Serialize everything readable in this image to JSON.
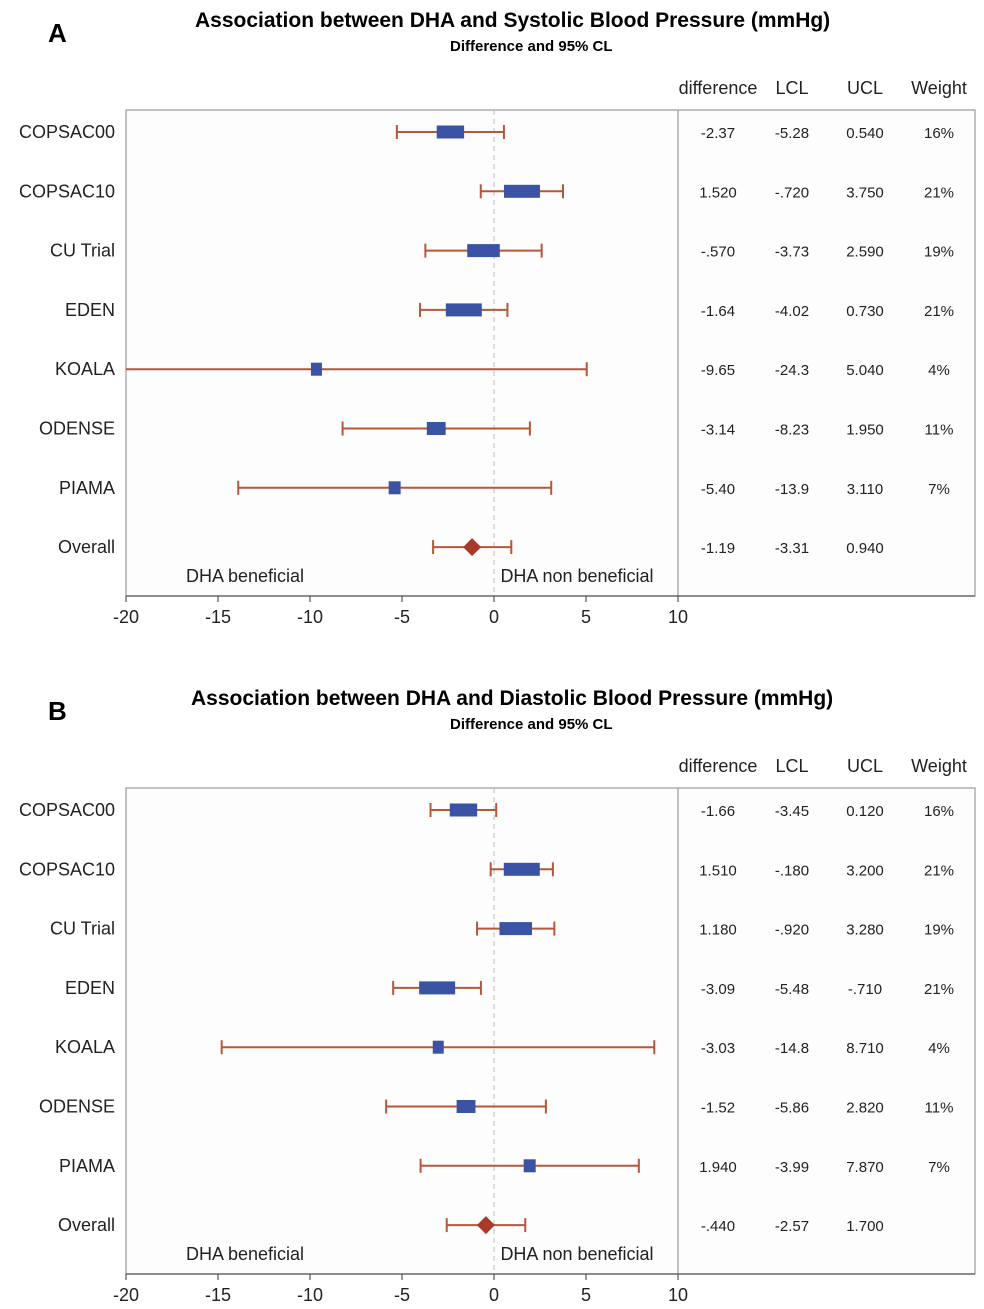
{
  "chart_data": [
    {
      "type": "forest",
      "panel_label": "A",
      "title": "Association between DHA and Systolic Blood Pressure (mmHg)",
      "subtitle": "Difference and 95% CL",
      "columns": [
        "difference",
        "LCL",
        "UCL",
        "Weight"
      ],
      "annotation_left": "DHA beneficial",
      "annotation_right": "DHA non beneficial",
      "xlim": [
        -20,
        10
      ],
      "xticks": [
        "-20",
        "-15",
        "-10",
        "-5",
        "0",
        "5",
        "10"
      ],
      "studies": [
        {
          "name": "COPSAC00",
          "diff": -2.37,
          "lcl": -5.28,
          "ucl": 0.54,
          "diff_label": "-2.37",
          "lcl_label": "-5.28",
          "ucl_label": "0.540",
          "weight": 16,
          "weight_label": "16%"
        },
        {
          "name": "COPSAC10",
          "diff": 1.52,
          "lcl": -0.72,
          "ucl": 3.75,
          "diff_label": "1.520",
          "lcl_label": "-.720",
          "ucl_label": "3.750",
          "weight": 21,
          "weight_label": "21%"
        },
        {
          "name": "CU Trial",
          "diff": -0.57,
          "lcl": -3.73,
          "ucl": 2.59,
          "diff_label": "-.570",
          "lcl_label": "-3.73",
          "ucl_label": "2.590",
          "weight": 19,
          "weight_label": "19%"
        },
        {
          "name": "EDEN",
          "diff": -1.64,
          "lcl": -4.02,
          "ucl": 0.73,
          "diff_label": "-1.64",
          "lcl_label": "-4.02",
          "ucl_label": "0.730",
          "weight": 21,
          "weight_label": "21%"
        },
        {
          "name": "KOALA",
          "diff": -9.65,
          "lcl": -24.3,
          "ucl": 5.04,
          "diff_label": "-9.65",
          "lcl_label": "-24.3",
          "ucl_label": "5.040",
          "weight": 4,
          "weight_label": "4%"
        },
        {
          "name": "ODENSE",
          "diff": -3.14,
          "lcl": -8.23,
          "ucl": 1.95,
          "diff_label": "-3.14",
          "lcl_label": "-8.23",
          "ucl_label": "1.950",
          "weight": 11,
          "weight_label": "11%"
        },
        {
          "name": "PIAMA",
          "diff": -5.4,
          "lcl": -13.9,
          "ucl": 3.11,
          "diff_label": "-5.40",
          "lcl_label": "-13.9",
          "ucl_label": "3.110",
          "weight": 7,
          "weight_label": "7%"
        }
      ],
      "overall": {
        "name": "Overall",
        "diff": -1.19,
        "lcl": -3.31,
        "ucl": 0.94,
        "diff_label": "-1.19",
        "lcl_label": "-3.31",
        "ucl_label": "0.940"
      }
    },
    {
      "type": "forest",
      "panel_label": "B",
      "title": "Association between DHA and Diastolic Blood Pressure (mmHg)",
      "subtitle": "Difference and 95% CL",
      "columns": [
        "difference",
        "LCL",
        "UCL",
        "Weight"
      ],
      "annotation_left": "DHA beneficial",
      "annotation_right": "DHA non beneficial",
      "xlim": [
        -20,
        10
      ],
      "xticks": [
        "-20",
        "-15",
        "-10",
        "-5",
        "0",
        "5",
        "10"
      ],
      "studies": [
        {
          "name": "COPSAC00",
          "diff": -1.66,
          "lcl": -3.45,
          "ucl": 0.12,
          "diff_label": "-1.66",
          "lcl_label": "-3.45",
          "ucl_label": "0.120",
          "weight": 16,
          "weight_label": "16%"
        },
        {
          "name": "COPSAC10",
          "diff": 1.51,
          "lcl": -0.18,
          "ucl": 3.2,
          "diff_label": "1.510",
          "lcl_label": "-.180",
          "ucl_label": "3.200",
          "weight": 21,
          "weight_label": "21%"
        },
        {
          "name": "CU Trial",
          "diff": 1.18,
          "lcl": -0.92,
          "ucl": 3.28,
          "diff_label": "1.180",
          "lcl_label": "-.920",
          "ucl_label": "3.280",
          "weight": 19,
          "weight_label": "19%"
        },
        {
          "name": "EDEN",
          "diff": -3.09,
          "lcl": -5.48,
          "ucl": -0.71,
          "diff_label": "-3.09",
          "lcl_label": "-5.48",
          "ucl_label": "-.710",
          "weight": 21,
          "weight_label": "21%"
        },
        {
          "name": "KOALA",
          "diff": -3.03,
          "lcl": -14.8,
          "ucl": 8.71,
          "diff_label": "-3.03",
          "lcl_label": "-14.8",
          "ucl_label": "8.710",
          "weight": 4,
          "weight_label": "4%"
        },
        {
          "name": "ODENSE",
          "diff": -1.52,
          "lcl": -5.86,
          "ucl": 2.82,
          "diff_label": "-1.52",
          "lcl_label": "-5.86",
          "ucl_label": "2.820",
          "weight": 11,
          "weight_label": "11%"
        },
        {
          "name": "PIAMA",
          "diff": 1.94,
          "lcl": -3.99,
          "ucl": 7.87,
          "diff_label": "1.940",
          "lcl_label": "-3.99",
          "ucl_label": "7.870",
          "weight": 7,
          "weight_label": "7%"
        }
      ],
      "overall": {
        "name": "Overall",
        "diff": -0.44,
        "lcl": -2.57,
        "ucl": 1.7,
        "diff_label": "-.440",
        "lcl_label": "-2.57",
        "ucl_label": "1.700"
      }
    }
  ],
  "colors": {
    "ci_line": "#b5573a",
    "box": "#3a53a4",
    "overall_diamond": "#a83a2a",
    "zero_line": "#bbbbbb",
    "frame": "#999999"
  }
}
